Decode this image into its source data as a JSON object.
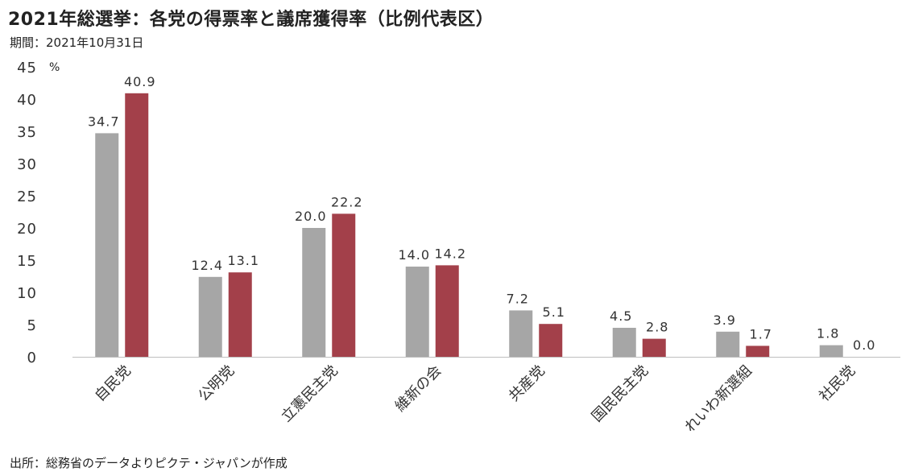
{
  "title": "2021年総選挙：各党の得票率と議席獲得率（比例代表区）",
  "subtitle": "期間：2021年10月31日",
  "unit": "%",
  "source": "出所：総務省のデータよりピクテ・ジャパンが作成",
  "colors": {
    "vote_share": "#a6a6a6",
    "seat_share": "#a3404a",
    "axis": "#bfbfbf"
  },
  "chart_data": {
    "type": "bar",
    "categories": [
      "自民党",
      "公明党",
      "立憲民主党",
      "維新の会",
      "共産党",
      "国民民主党",
      "れいわ新選組",
      "社民党"
    ],
    "series": [
      {
        "values": [
          34.7,
          12.4,
          20.0,
          14.0,
          7.2,
          4.5,
          3.9,
          1.8
        ]
      },
      {
        "values": [
          40.9,
          13.1,
          22.2,
          14.2,
          5.1,
          2.8,
          1.7,
          0.0
        ]
      }
    ],
    "ylim": [
      0,
      45
    ],
    "yticks": [
      0,
      5,
      10,
      15,
      20,
      25,
      30,
      35,
      40,
      45
    ],
    "ylabel": "%",
    "legend": "none",
    "grid": false
  }
}
